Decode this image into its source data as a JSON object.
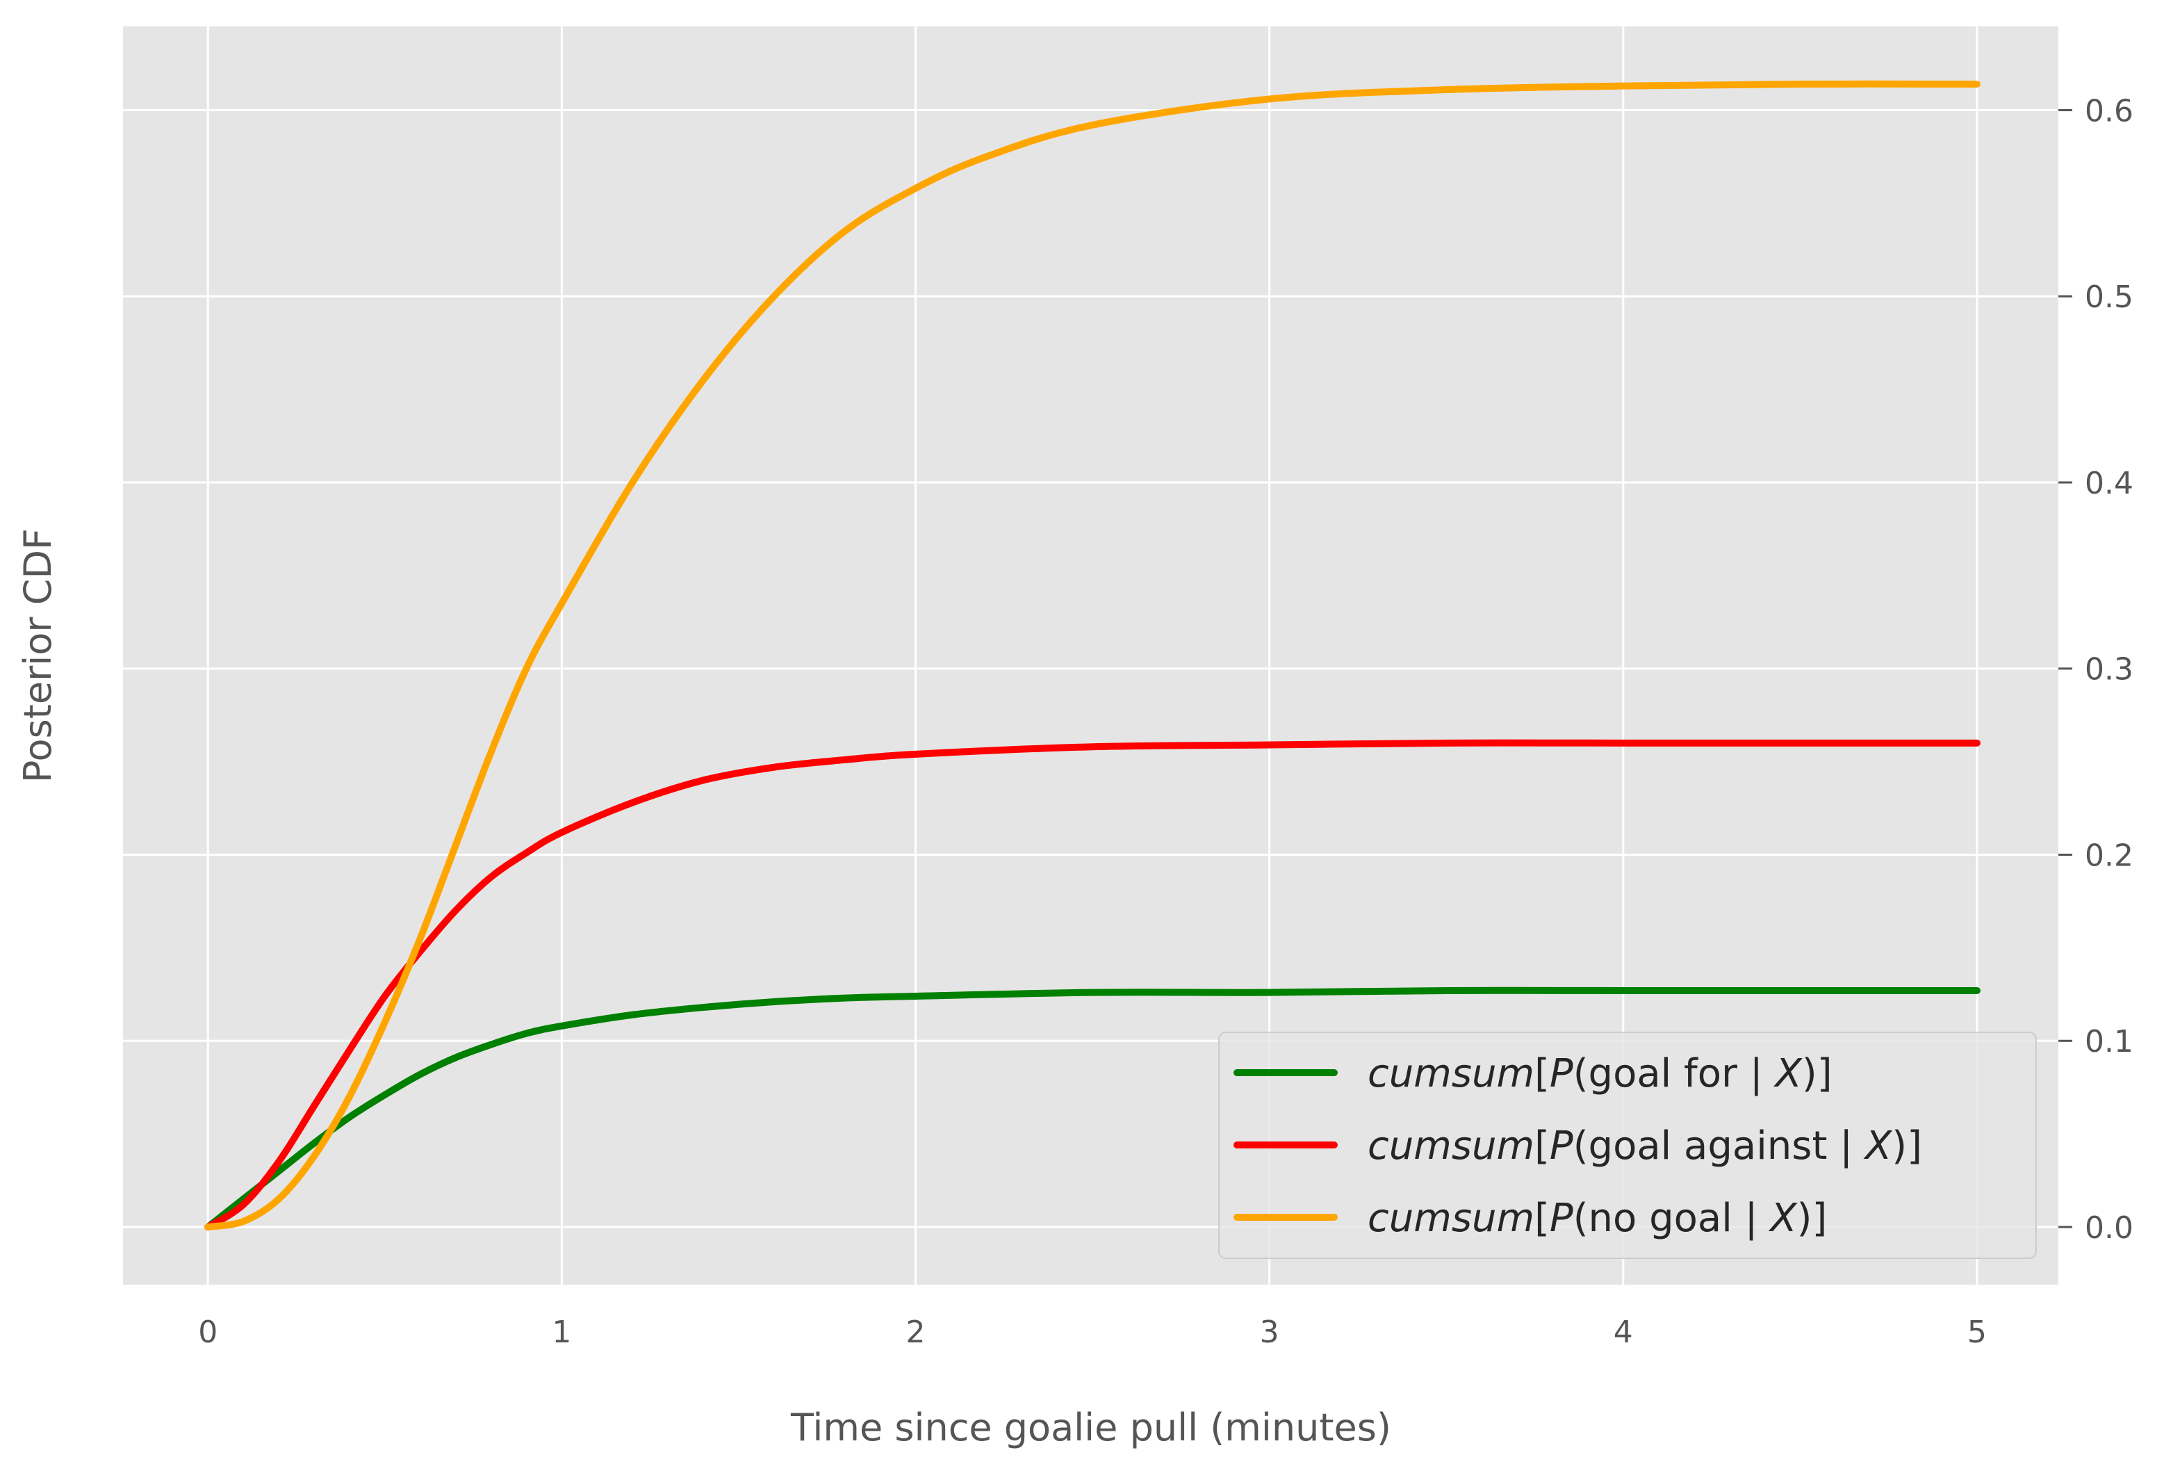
{
  "chart_data": {
    "type": "line",
    "xlabel": "Time since goalie pull (minutes)",
    "ylabel": "Posterior CDF",
    "xlim": [
      -0.24,
      5.23
    ],
    "ylim": [
      -0.031,
      0.645
    ],
    "x_ticks": [
      0,
      1,
      2,
      3,
      4,
      5
    ],
    "y_ticks": [
      0.0,
      0.1,
      0.2,
      0.3,
      0.4,
      0.5,
      0.6
    ],
    "x_tick_labels": [
      "0",
      "1",
      "2",
      "3",
      "4",
      "5"
    ],
    "y_tick_labels": [
      "0.0",
      "0.1",
      "0.2",
      "0.3",
      "0.4",
      "0.5",
      "0.6"
    ],
    "y_axis_position": "right",
    "grid": true,
    "legend_position": "lower-right",
    "background_color": "#e5e5e5",
    "grid_color": "#ffffff",
    "series": [
      {
        "name": "cumsum[P(goal for | X)]",
        "legend": {
          "func": "cumsum",
          "prob": "P",
          "event": "goal for",
          "cond": "X"
        },
        "color": "#008000",
        "x": [
          0,
          0.1,
          0.2,
          0.3,
          0.4,
          0.5,
          0.6,
          0.7,
          0.8,
          0.9,
          1.0,
          1.2,
          1.4,
          1.6,
          1.8,
          2.0,
          2.5,
          3.0,
          3.5,
          4.0,
          4.5,
          5.0
        ],
        "y": [
          0.0,
          0.015,
          0.03,
          0.045,
          0.059,
          0.071,
          0.082,
          0.091,
          0.098,
          0.104,
          0.108,
          0.114,
          0.118,
          0.121,
          0.123,
          0.124,
          0.126,
          0.126,
          0.127,
          0.127,
          0.127,
          0.127
        ]
      },
      {
        "name": "cumsum[P(goal against | X)]",
        "legend": {
          "func": "cumsum",
          "prob": "P",
          "event": "goal against",
          "cond": "X"
        },
        "color": "#ff0000",
        "x": [
          0,
          0.1,
          0.2,
          0.3,
          0.4,
          0.5,
          0.6,
          0.7,
          0.8,
          0.9,
          1.0,
          1.2,
          1.4,
          1.6,
          1.8,
          2.0,
          2.5,
          3.0,
          3.5,
          4.0,
          4.5,
          5.0
        ],
        "y": [
          0.0,
          0.012,
          0.035,
          0.065,
          0.095,
          0.124,
          0.148,
          0.17,
          0.188,
          0.201,
          0.212,
          0.228,
          0.24,
          0.247,
          0.251,
          0.254,
          0.258,
          0.259,
          0.26,
          0.26,
          0.26,
          0.26
        ]
      },
      {
        "name": "cumsum[P(no goal | X)]",
        "legend": {
          "func": "cumsum",
          "prob": "P",
          "event": "no goal",
          "cond": "X"
        },
        "color": "#ffa500",
        "x": [
          0,
          0.1,
          0.2,
          0.3,
          0.4,
          0.5,
          0.6,
          0.7,
          0.8,
          0.9,
          1.0,
          1.2,
          1.4,
          1.6,
          1.8,
          2.0,
          2.2,
          2.5,
          3.0,
          3.5,
          4.0,
          4.5,
          5.0
        ],
        "y": [
          0.0,
          0.003,
          0.015,
          0.038,
          0.07,
          0.11,
          0.155,
          0.205,
          0.255,
          0.3,
          0.335,
          0.4,
          0.455,
          0.5,
          0.535,
          0.558,
          0.575,
          0.592,
          0.606,
          0.611,
          0.613,
          0.614,
          0.614
        ]
      }
    ]
  }
}
